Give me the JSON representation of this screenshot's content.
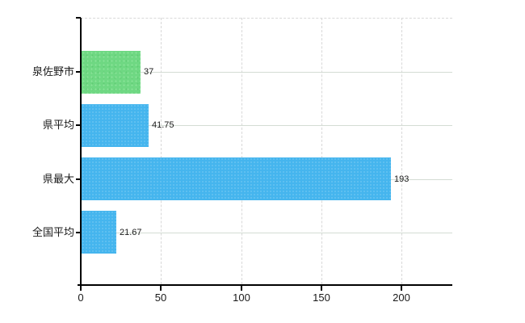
{
  "colors": {
    "background": "#ffffff",
    "bar_green": "#6fd883",
    "bar_blue": "#45b5ee",
    "axis": "#000000",
    "grid_vertical": "#d8d8d8",
    "grid_horizontal": "#d4dcd4",
    "label_text": "#1a1a1a"
  },
  "chart_data": {
    "type": "bar",
    "orientation": "horizontal",
    "title": "",
    "xlabel": "",
    "ylabel": "",
    "categories": [
      "泉佐野市",
      "県平均",
      "県最大",
      "全国平均"
    ],
    "values": [
      37,
      41.75,
      193,
      21.67
    ],
    "value_labels": [
      "37",
      "41.75",
      "193",
      "21.67"
    ],
    "bar_colors": [
      "#6fd883",
      "#45b5ee",
      "#45b5ee",
      "#45b5ee"
    ],
    "x_ticks": [
      0,
      50,
      100,
      150,
      200
    ],
    "x_tick_labels": [
      "0",
      "50",
      "100",
      "150",
      "200"
    ],
    "xlim": [
      0,
      232
    ],
    "grid": {
      "vertical": "dashed",
      "horizontal_category_lines": true,
      "top_border": "dashed"
    },
    "legend": "none"
  }
}
